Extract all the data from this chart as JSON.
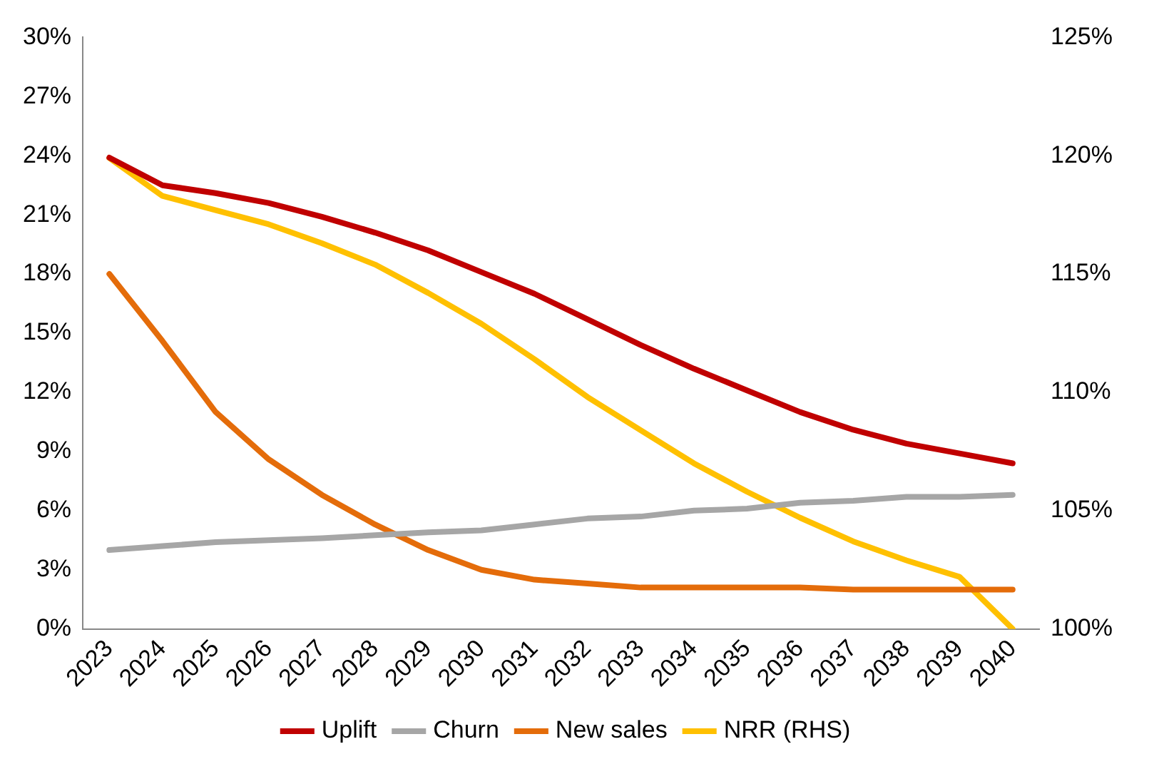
{
  "chart_data": {
    "type": "line",
    "categories": [
      "2023",
      "2024",
      "2025",
      "2026",
      "2027",
      "2028",
      "2029",
      "2030",
      "2031",
      "2032",
      "2033",
      "2034",
      "2035",
      "2036",
      "2037",
      "2038",
      "2039",
      "2040"
    ],
    "series": [
      {
        "name": "Uplift",
        "color": "#c00000",
        "values": [
          23.9,
          22.5,
          22.1,
          21.6,
          20.9,
          20.1,
          19.2,
          18.1,
          17.0,
          15.7,
          14.4,
          13.2,
          12.1,
          11.0,
          10.1,
          9.4,
          8.9,
          8.4
        ]
      },
      {
        "name": "Churn",
        "color": "#a6a6a6",
        "values": [
          4.0,
          4.2,
          4.4,
          4.5,
          4.6,
          4.75,
          4.9,
          5.0,
          5.3,
          5.6,
          5.7,
          6.0,
          6.1,
          6.4,
          6.5,
          6.7,
          6.7,
          6.8
        ]
      },
      {
        "name": "New sales",
        "color": "#e46c0a",
        "values": [
          18.0,
          14.6,
          11.0,
          8.6,
          6.8,
          5.3,
          4.0,
          3.0,
          2.5,
          2.3,
          2.1,
          2.1,
          2.1,
          2.1,
          2.0,
          2.0,
          2.0,
          2.0
        ]
      },
      {
        "name": "NRR (RHS)",
        "color": "#ffc000",
        "axis": "y2",
        "values": [
          119.9,
          118.3,
          117.7,
          117.1,
          116.3,
          115.4,
          114.2,
          112.9,
          111.4,
          109.8,
          108.4,
          107.0,
          105.8,
          104.7,
          103.7,
          102.9,
          102.2,
          100.0
        ]
      }
    ],
    "ylim": [
      0,
      30
    ],
    "yticks": [
      {
        "value": 0,
        "label": "0%"
      },
      {
        "value": 3,
        "label": "3%"
      },
      {
        "value": 6,
        "label": "6%"
      },
      {
        "value": 9,
        "label": "9%"
      },
      {
        "value": 12,
        "label": "12%"
      },
      {
        "value": 15,
        "label": "15%"
      },
      {
        "value": 18,
        "label": "18%"
      },
      {
        "value": 21,
        "label": "21%"
      },
      {
        "value": 24,
        "label": "24%"
      },
      {
        "value": 27,
        "label": "27%"
      },
      {
        "value": 30,
        "label": "30%"
      }
    ],
    "y2lim": [
      100,
      125
    ],
    "y2ticks": [
      {
        "value": 100,
        "label": "100%"
      },
      {
        "value": 105,
        "label": "105%"
      },
      {
        "value": 110,
        "label": "110%"
      },
      {
        "value": 115,
        "label": "115%"
      },
      {
        "value": 120,
        "label": "120%"
      },
      {
        "value": 125,
        "label": "125%"
      }
    ],
    "grid": false,
    "legend": "bottom",
    "marker": "none",
    "line_style": "solid"
  }
}
